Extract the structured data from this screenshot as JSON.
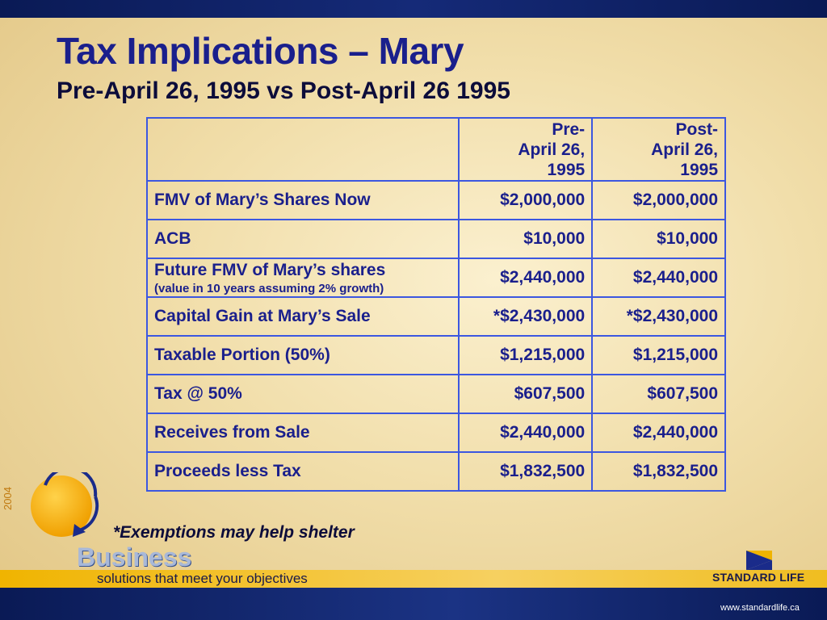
{
  "slide": {
    "title": "Tax Implications – Mary",
    "subtitle": "Pre-April 26, 1995 vs Post-April 26 1995"
  },
  "table": {
    "headers": {
      "col1": [
        "Pre-",
        "April 26,",
        "1995"
      ],
      "col2": [
        "Post-",
        "April 26,",
        "1995"
      ]
    },
    "rows": [
      {
        "label": "FMV of Mary’s Shares Now",
        "pre": "$2,000,000",
        "post": "$2,000,000"
      },
      {
        "label": "ACB",
        "pre": "$10,000",
        "post": "$10,000"
      },
      {
        "label": "Future FMV of Mary’s shares",
        "note": "(value in 10 years assuming 2% growth)",
        "pre": "$2,440,000",
        "post": "$2,440,000"
      },
      {
        "label": "Capital Gain at Mary’s Sale",
        "pre": "*$2,430,000",
        "post": "*$2,430,000"
      },
      {
        "label": "Taxable Portion (50%)",
        "pre": "$1,215,000",
        "post": "$1,215,000"
      },
      {
        "label": "Tax @ 50%",
        "pre": "$607,500",
        "post": "$607,500"
      },
      {
        "label": "Receives from Sale",
        "pre": "$2,440,000",
        "post": "$2,440,000"
      },
      {
        "label": "Proceeds less Tax",
        "pre": "$1,832,500",
        "post": "$1,832,500"
      }
    ]
  },
  "footnote": "*Exemptions may help shelter",
  "branding": {
    "year": "2004",
    "business_word": "Business",
    "tagline": "solutions that meet your objectives",
    "company": "STANDARD LIFE",
    "website": "www.standardlife.ca"
  },
  "colors": {
    "title": "#1a1f8c",
    "table_border": "#3c57e0",
    "band": "#0a1a55",
    "stripe": "#f0b400",
    "accent_orange": "#f0a800"
  }
}
